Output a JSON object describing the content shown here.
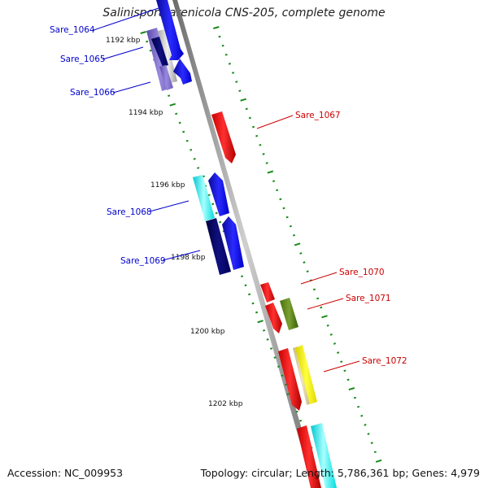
{
  "title": "Salinispora arenicola CNS-205, complete genome",
  "accession": "Accession: NC_009953",
  "summary": "Topology: circular; Length: 5,786,361 bp; Genes: 4,979",
  "colors": {
    "backbone": "#8a8a8a",
    "tick": "#1a8a1a",
    "left_label": "#0000cc",
    "right_label": "#cc0000"
  },
  "kbp_labels": [
    "1192 kbp",
    "1194 kbp",
    "1196 kbp",
    "1198 kbp",
    "1200 kbp",
    "1202 kbp"
  ],
  "left_genes": [
    "Sare_1064",
    "Sare_1065",
    "Sare_1066",
    "Sare_1068",
    "Sare_1069"
  ],
  "right_genes": [
    "Sare_1067",
    "Sare_1070",
    "Sare_1071",
    "Sare_1072"
  ]
}
